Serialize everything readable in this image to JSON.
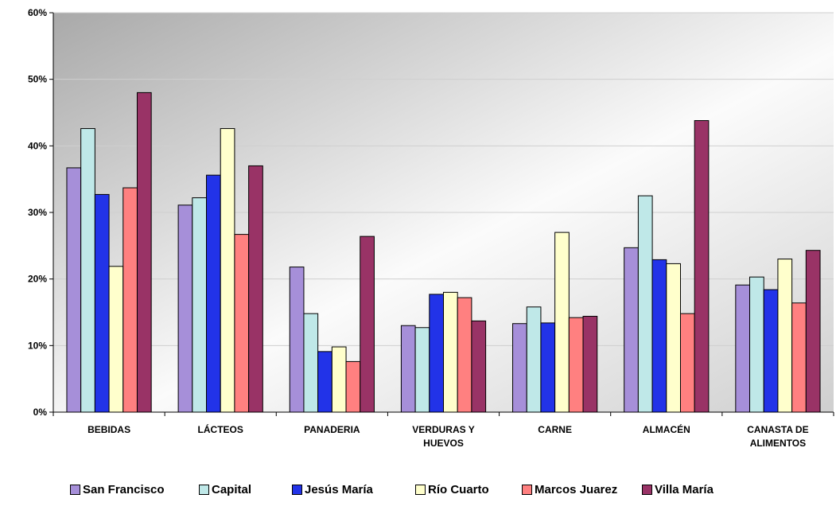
{
  "chart_data": {
    "type": "bar",
    "categories": [
      [
        "BEBIDAS"
      ],
      [
        "LÁCTEOS"
      ],
      [
        "PANADERIA"
      ],
      [
        "VERDURAS Y",
        "HUEVOS"
      ],
      [
        "CARNE"
      ],
      [
        "ALMACÉN"
      ],
      [
        "CANASTA DE",
        "ALIMENTOS"
      ]
    ],
    "series": [
      {
        "name": "San Francisco",
        "color": "#a68fd9",
        "values": [
          36.7,
          31.1,
          21.8,
          13.0,
          13.3,
          24.7,
          19.1
        ]
      },
      {
        "name": "Capital",
        "color": "#bfe8e8",
        "values": [
          42.6,
          32.2,
          14.8,
          12.7,
          15.8,
          32.5,
          20.3
        ]
      },
      {
        "name": "Jesús María",
        "color": "#2233e8",
        "values": [
          32.7,
          35.6,
          9.1,
          17.7,
          13.4,
          22.9,
          18.4
        ]
      },
      {
        "name": "Río Cuarto",
        "color": "#ffffcc",
        "values": [
          21.9,
          42.6,
          9.8,
          18.0,
          27.0,
          22.3,
          23.0
        ]
      },
      {
        "name": "Marcos Juarez",
        "color": "#ff8080",
        "values": [
          33.7,
          26.7,
          7.6,
          17.2,
          14.2,
          14.8,
          16.4
        ]
      },
      {
        "name": "Villa María",
        "color": "#993366",
        "values": [
          48.0,
          37.0,
          26.4,
          13.7,
          14.4,
          43.8,
          24.3
        ]
      }
    ],
    "yticks": [
      "0%",
      "10%",
      "20%",
      "30%",
      "40%",
      "50%",
      "60%"
    ],
    "ylim": [
      0,
      60
    ],
    "grid": true,
    "legend_position": "bottom",
    "title": "",
    "xlabel": "",
    "ylabel": ""
  }
}
